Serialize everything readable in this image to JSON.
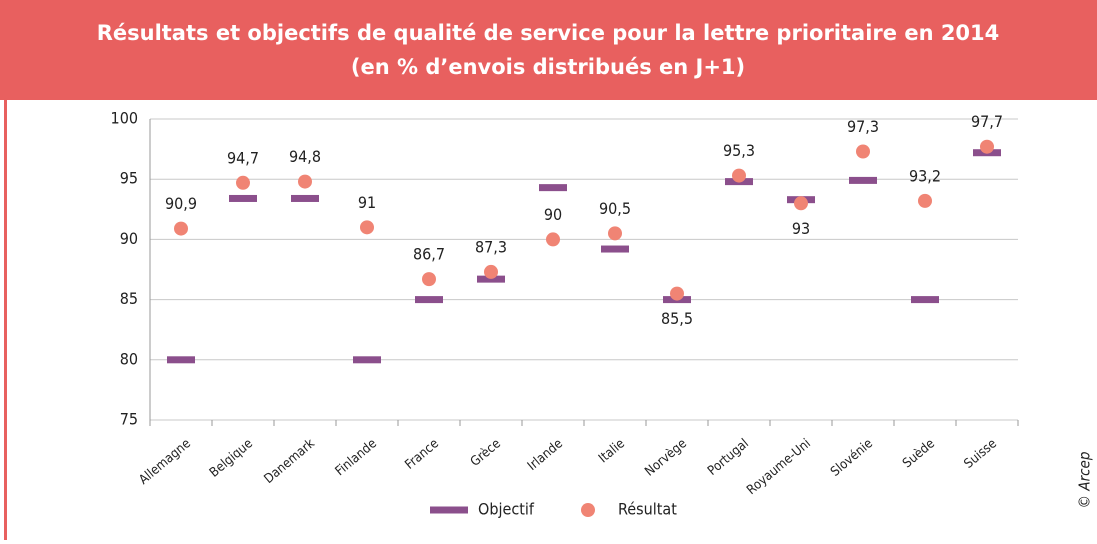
{
  "chart_data": {
    "type": "dot",
    "title": "Résultats et objectifs de qualité de service pour la lettre prioritaire en 2014",
    "subtitle": "(en % d’envois distribués en J+1)",
    "credit": "© Arcep",
    "categories": [
      "Allemagne",
      "Belgique",
      "Danemark",
      "Finlande",
      "France",
      "Grèce",
      "Irlande",
      "Italie",
      "Norvège",
      "Portugal",
      "Royaume-Uni",
      "Slovénie",
      "Suède",
      "Suisse"
    ],
    "series": [
      {
        "name": "Objectif",
        "color": "#8b4f8c",
        "marker": "dash",
        "values": [
          80,
          93.4,
          93.4,
          80,
          85,
          86.7,
          94.3,
          89.2,
          85,
          94.8,
          93.3,
          94.9,
          85,
          97.2
        ]
      },
      {
        "name": "Résultat",
        "color": "#f08474",
        "marker": "circle",
        "values": [
          90.9,
          94.7,
          94.8,
          91,
          86.7,
          87.3,
          90,
          90.5,
          85.5,
          95.3,
          93,
          97.3,
          93.2,
          97.7
        ],
        "value_labels": [
          "90,9",
          "94,7",
          "94,8",
          "91",
          "86,7",
          "87,3",
          "90",
          "90,5",
          "85,5",
          "95,3",
          "93",
          "97,3",
          "93,2",
          "97,7"
        ]
      }
    ],
    "ylim": [
      75,
      100
    ],
    "yticks": [
      75,
      80,
      85,
      90,
      95,
      100
    ],
    "grid": true,
    "legend": "bottom"
  }
}
